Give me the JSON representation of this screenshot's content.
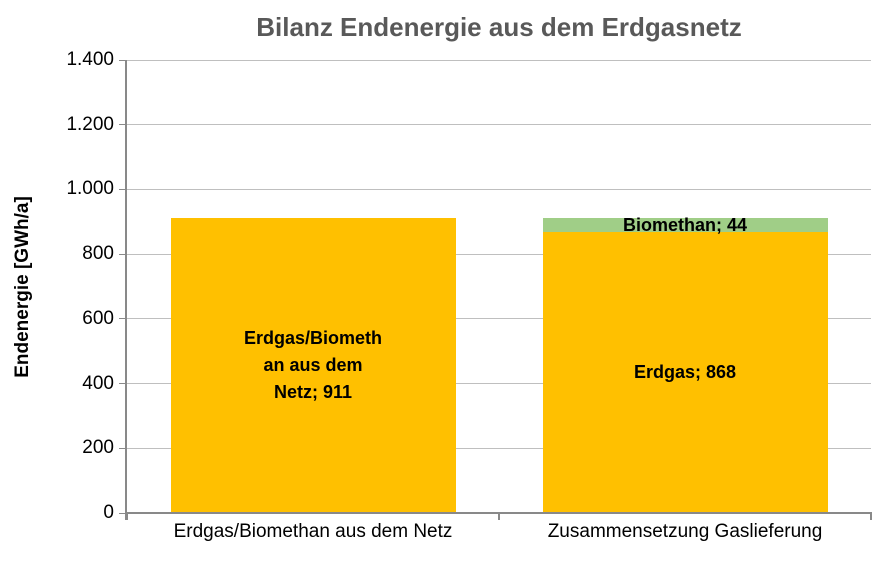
{
  "chart_data": {
    "type": "bar",
    "stacked": true,
    "title": "Bilanz Endenergie aus dem Erdgasnetz",
    "xlabel": "",
    "ylabel": "Endenergie [GWh/a]",
    "ylim": [
      0,
      1400
    ],
    "ytick_step": 200,
    "ytick_labels": [
      "0",
      "200",
      "400",
      "600",
      "800",
      "1.000",
      "1.200",
      "1.400"
    ],
    "grid": true,
    "legend_position": "none",
    "categories": [
      "Erdgas/Biomethan aus dem Netz",
      "Zusammensetzung Gaslieferung"
    ],
    "bars": [
      {
        "category": "Erdgas/Biomethan aus dem Netz",
        "total": 911,
        "segments": [
          {
            "name": "erdgas-biomethan-aus-dem-netz",
            "value": 911,
            "color": "#FFC000",
            "label": "Erdgas/Biomethan aus dem Netz; 911",
            "label_lines": [
              "Erdgas/Biometh",
              "an aus dem",
              "Netz; 911"
            ]
          }
        ]
      },
      {
        "category": "Zusammensetzung Gaslieferung",
        "total": 912,
        "segments": [
          {
            "name": "erdgas",
            "value": 868,
            "color": "#FFC000",
            "label": "Erdgas; 868",
            "label_lines": [
              "Erdgas; 868"
            ]
          },
          {
            "name": "biomethan",
            "value": 44,
            "color": "#A0CE87",
            "label": "Biomethan; 44",
            "label_lines": [
              "Biomethan; 44"
            ]
          }
        ]
      }
    ],
    "colors": {
      "erdgas_fill": "#FFC000",
      "biomethan_fill": "#A0CE87",
      "title_text": "#595959",
      "axis_line": "#898989",
      "gridline": "#BFBFBF",
      "label_text": "#000000"
    }
  }
}
